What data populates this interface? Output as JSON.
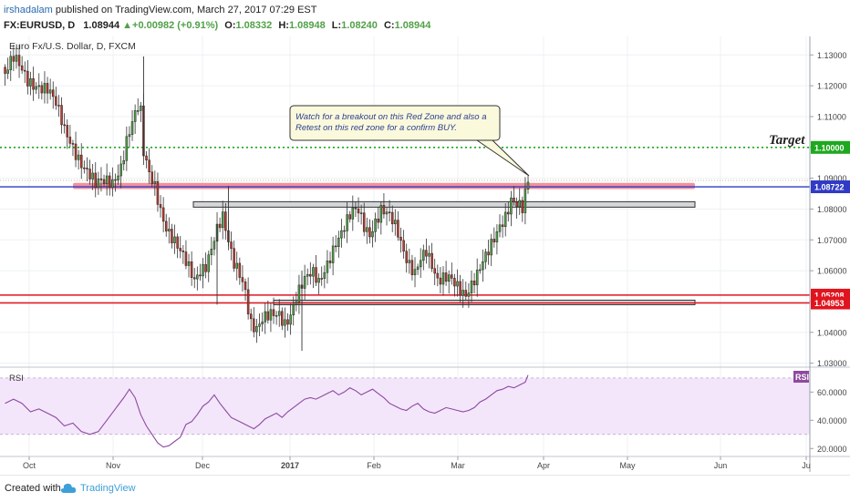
{
  "header": {
    "author": "irshadalam",
    "published_text": "published on TradingView.com, March 27, 2017 07:29 EST",
    "ticker": "FX:EURUSD, D",
    "last": "1.08944",
    "change": "+0.00982 (+0.91%)",
    "o_label": "O:",
    "o_value": "1.08332",
    "h_label": "H:",
    "h_value": "1.08948",
    "l_label": "L:",
    "l_value": "1.08240",
    "c_label": "C:",
    "c_value": "1.08944"
  },
  "footer": {
    "created_with": "Created with",
    "brand": "TradingView"
  },
  "colors": {
    "up": "#52a049",
    "down": "#c0392b",
    "zone": "#f07e8c",
    "target": "#1ea81e",
    "blue_level": "#2f3bc4",
    "red_level": "#e0141e",
    "rsi": "#8e4a9e",
    "rsi_bg": "#f3e6fb"
  },
  "chart_data": [
    {
      "type": "candlestick",
      "title": "Euro Fx/U.S. Dollar, D, FXCM",
      "y_ticks": [
        "1.13000",
        "1.12000",
        "1.11000",
        "1.10000",
        "1.09000",
        "1.08000",
        "1.07000",
        "1.06000",
        "1.05000",
        "1.04000",
        "1.03000"
      ],
      "y_range": [
        1.029,
        1.136
      ],
      "x_ticks": [
        "Oct",
        "Nov",
        "Dec",
        "2017",
        "Feb",
        "Mar",
        "Apr",
        "May",
        "Jun",
        "Ju"
      ],
      "price_labels": [
        {
          "text": "1.10000",
          "value": 1.1,
          "color": "#1ea81e"
        },
        {
          "text": "1.08722",
          "value": 1.08722,
          "color": "#2f3bc4"
        },
        {
          "text": "1.05208",
          "value": 1.05208,
          "color": "#e0141e"
        },
        {
          "text": "1.04953",
          "value": 1.04953,
          "color": "#e0141e"
        }
      ],
      "target_label": "Target",
      "annotation": [
        "Watch for a breakout on this Red Zone and also a",
        "Retest on this red zone for a confirm BUY."
      ],
      "levels": {
        "target": 1.1,
        "blue": 1.08722,
        "red_zone": [
          1.0865,
          1.0885
        ],
        "gray_upper": 1.0815,
        "gray_lower": 1.0497,
        "red_upper": 1.05208,
        "red_lower": 1.04953
      },
      "close_path": [
        [
          0,
          1.124
        ],
        [
          3,
          1.128
        ],
        [
          8,
          1.122
        ],
        [
          12,
          1.121
        ],
        [
          15,
          1.119
        ],
        [
          18,
          1.113
        ],
        [
          21,
          1.105
        ],
        [
          24,
          1.101
        ],
        [
          27,
          1.096
        ],
        [
          30,
          1.091
        ],
        [
          32,
          1.087
        ],
        [
          35,
          1.088
        ],
        [
          38,
          1.089
        ],
        [
          41,
          1.095
        ],
        [
          43,
          1.103
        ],
        [
          45,
          1.108
        ],
        [
          47,
          1.112
        ],
        [
          48,
          1.11
        ],
        [
          49,
          1.097
        ],
        [
          51,
          1.091
        ],
        [
          53,
          1.088
        ],
        [
          55,
          1.081
        ],
        [
          57,
          1.075
        ],
        [
          59,
          1.071
        ],
        [
          62,
          1.065
        ],
        [
          65,
          1.06
        ],
        [
          67,
          1.057
        ],
        [
          69,
          1.061
        ],
        [
          71,
          1.063
        ],
        [
          73,
          1.068
        ],
        [
          75,
          1.073
        ],
        [
          77,
          1.076
        ],
        [
          79,
          1.068
        ],
        [
          81,
          1.062
        ],
        [
          83,
          1.06
        ],
        [
          85,
          1.055
        ],
        [
          86,
          1.049
        ],
        [
          87,
          1.044
        ],
        [
          89,
          1.041
        ],
        [
          91,
          1.043
        ],
        [
          93,
          1.044
        ],
        [
          95,
          1.045
        ],
        [
          97,
          1.046
        ],
        [
          99,
          1.044
        ],
        [
          101,
          1.047
        ],
        [
          103,
          1.052
        ],
        [
          105,
          1.055
        ],
        [
          107,
          1.057
        ],
        [
          109,
          1.058
        ],
        [
          111,
          1.056
        ],
        [
          113,
          1.061
        ],
        [
          115,
          1.066
        ],
        [
          117,
          1.07
        ],
        [
          119,
          1.072
        ],
        [
          121,
          1.075
        ],
        [
          123,
          1.078
        ],
        [
          125,
          1.079
        ],
        [
          127,
          1.075
        ],
        [
          129,
          1.073
        ],
        [
          131,
          1.077
        ],
        [
          133,
          1.08
        ],
        [
          135,
          1.078
        ],
        [
          137,
          1.075
        ],
        [
          139,
          1.071
        ],
        [
          141,
          1.066
        ],
        [
          143,
          1.063
        ],
        [
          145,
          1.061
        ],
        [
          147,
          1.065
        ],
        [
          149,
          1.066
        ],
        [
          151,
          1.06
        ],
        [
          153,
          1.055
        ],
        [
          155,
          1.057
        ],
        [
          157,
          1.059
        ],
        [
          159,
          1.058
        ],
        [
          161,
          1.055
        ],
        [
          163,
          1.052
        ],
        [
          165,
          1.054
        ],
        [
          167,
          1.057
        ],
        [
          169,
          1.062
        ],
        [
          171,
          1.067
        ],
        [
          173,
          1.072
        ],
        [
          175,
          1.076
        ],
        [
          177,
          1.078
        ],
        [
          179,
          1.082
        ],
        [
          181,
          1.08
        ],
        [
          183,
          1.079
        ],
        [
          185,
          1.089
        ]
      ],
      "candle_count": 186
    },
    {
      "type": "line",
      "title": "RSI",
      "badge": "RSI",
      "y_ticks": [
        "60.0000",
        "40.0000",
        "20.0000"
      ],
      "y_range": [
        15,
        77
      ],
      "band": [
        30,
        70
      ],
      "rsi_path": [
        [
          0,
          52
        ],
        [
          3,
          55
        ],
        [
          6,
          52
        ],
        [
          9,
          46
        ],
        [
          12,
          48
        ],
        [
          15,
          45
        ],
        [
          18,
          42
        ],
        [
          21,
          36
        ],
        [
          24,
          38
        ],
        [
          27,
          32
        ],
        [
          30,
          30
        ],
        [
          33,
          32
        ],
        [
          36,
          40
        ],
        [
          39,
          48
        ],
        [
          42,
          56
        ],
        [
          44,
          62
        ],
        [
          46,
          56
        ],
        [
          48,
          44
        ],
        [
          50,
          36
        ],
        [
          52,
          30
        ],
        [
          54,
          24
        ],
        [
          56,
          21
        ],
        [
          58,
          22
        ],
        [
          60,
          25
        ],
        [
          62,
          28
        ],
        [
          64,
          37
        ],
        [
          66,
          39
        ],
        [
          68,
          44
        ],
        [
          70,
          50
        ],
        [
          72,
          53
        ],
        [
          74,
          58
        ],
        [
          76,
          52
        ],
        [
          78,
          47
        ],
        [
          80,
          42
        ],
        [
          82,
          40
        ],
        [
          84,
          38
        ],
        [
          86,
          36
        ],
        [
          88,
          34
        ],
        [
          90,
          37
        ],
        [
          92,
          41
        ],
        [
          94,
          43
        ],
        [
          96,
          45
        ],
        [
          98,
          42
        ],
        [
          100,
          46
        ],
        [
          102,
          49
        ],
        [
          104,
          52
        ],
        [
          106,
          55
        ],
        [
          108,
          56
        ],
        [
          110,
          55
        ],
        [
          112,
          57
        ],
        [
          114,
          59
        ],
        [
          116,
          61
        ],
        [
          118,
          58
        ],
        [
          120,
          60
        ],
        [
          122,
          63
        ],
        [
          124,
          61
        ],
        [
          126,
          58
        ],
        [
          128,
          60
        ],
        [
          130,
          62
        ],
        [
          132,
          59
        ],
        [
          134,
          56
        ],
        [
          136,
          52
        ],
        [
          138,
          50
        ],
        [
          140,
          48
        ],
        [
          142,
          47
        ],
        [
          144,
          50
        ],
        [
          146,
          52
        ],
        [
          148,
          48
        ],
        [
          150,
          46
        ],
        [
          152,
          45
        ],
        [
          154,
          47
        ],
        [
          156,
          49
        ],
        [
          158,
          48
        ],
        [
          160,
          47
        ],
        [
          162,
          46
        ],
        [
          164,
          47
        ],
        [
          166,
          49
        ],
        [
          168,
          53
        ],
        [
          170,
          55
        ],
        [
          172,
          58
        ],
        [
          174,
          61
        ],
        [
          176,
          62
        ],
        [
          178,
          64
        ],
        [
          180,
          63
        ],
        [
          182,
          65
        ],
        [
          184,
          67
        ],
        [
          185,
          72
        ]
      ]
    }
  ]
}
